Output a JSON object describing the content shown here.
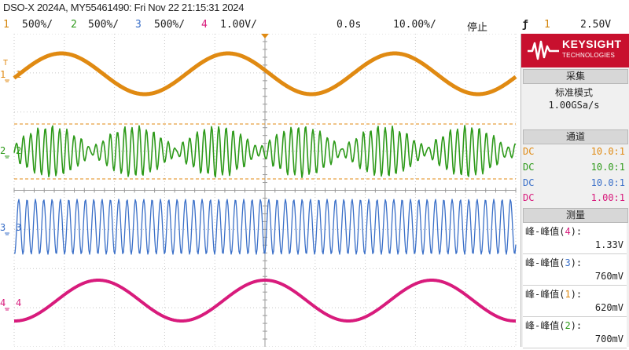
{
  "title": "DSO-X 2024A, MY55461490: Fri Nov 22 21:15:31 2024",
  "status": {
    "ch1_num": "1",
    "ch1_scale": "500%/",
    "ch2_num": "2",
    "ch2_scale": "500%/",
    "ch3_num": "3",
    "ch3_scale": "500%/",
    "ch4_num": "4",
    "ch4_scale": "1.00V/",
    "time_offset": "0.0s",
    "time_scale": "10.00%/",
    "run_state": "停止",
    "trigger_icon": "ƒ",
    "trigger_source": "1",
    "trigger_level": "2.50V"
  },
  "colors": {
    "ch1": "#e08a12",
    "ch2": "#2e9a1a",
    "ch3": "#3a6fc8",
    "ch4": "#d81b7c",
    "brand": "#c8102e"
  },
  "logo": {
    "line1": "KEYSIGHT",
    "line2": "TECHNOLOGIES"
  },
  "sidebar": {
    "acquire_header": "采集",
    "acquire_mode": "标准模式",
    "sample_rate": "1.00GSa/s",
    "channels_header": "通道",
    "channels": [
      {
        "coupling": "DC",
        "probe": "10.0:1",
        "color": "#e08a12"
      },
      {
        "coupling": "DC",
        "probe": "10.0:1",
        "color": "#2e9a1a"
      },
      {
        "coupling": "DC",
        "probe": "10.0:1",
        "color": "#3a6fc8"
      },
      {
        "coupling": "DC",
        "probe": "1.00:1",
        "color": "#d81b7c"
      }
    ],
    "measure_header": "测量",
    "measurements": [
      {
        "prefix": "峰-峰值(",
        "ch": "4",
        "suffix": "):",
        "value": "1.33V",
        "color": "#d81b7c"
      },
      {
        "prefix": "峰-峰值(",
        "ch": "3",
        "suffix": "):",
        "value": "760mV",
        "color": "#3a6fc8"
      },
      {
        "prefix": "峰-峰值(",
        "ch": "1",
        "suffix": "):",
        "value": "620mV",
        "color": "#e08a12"
      },
      {
        "prefix": "峰-峰值(",
        "ch": "2",
        "suffix": "):",
        "value": "700mV",
        "color": "#2e9a1a"
      }
    ]
  },
  "screen": {
    "marker_labels": [
      "1",
      "2",
      "3",
      "4"
    ],
    "trigger_marker": "T"
  }
}
